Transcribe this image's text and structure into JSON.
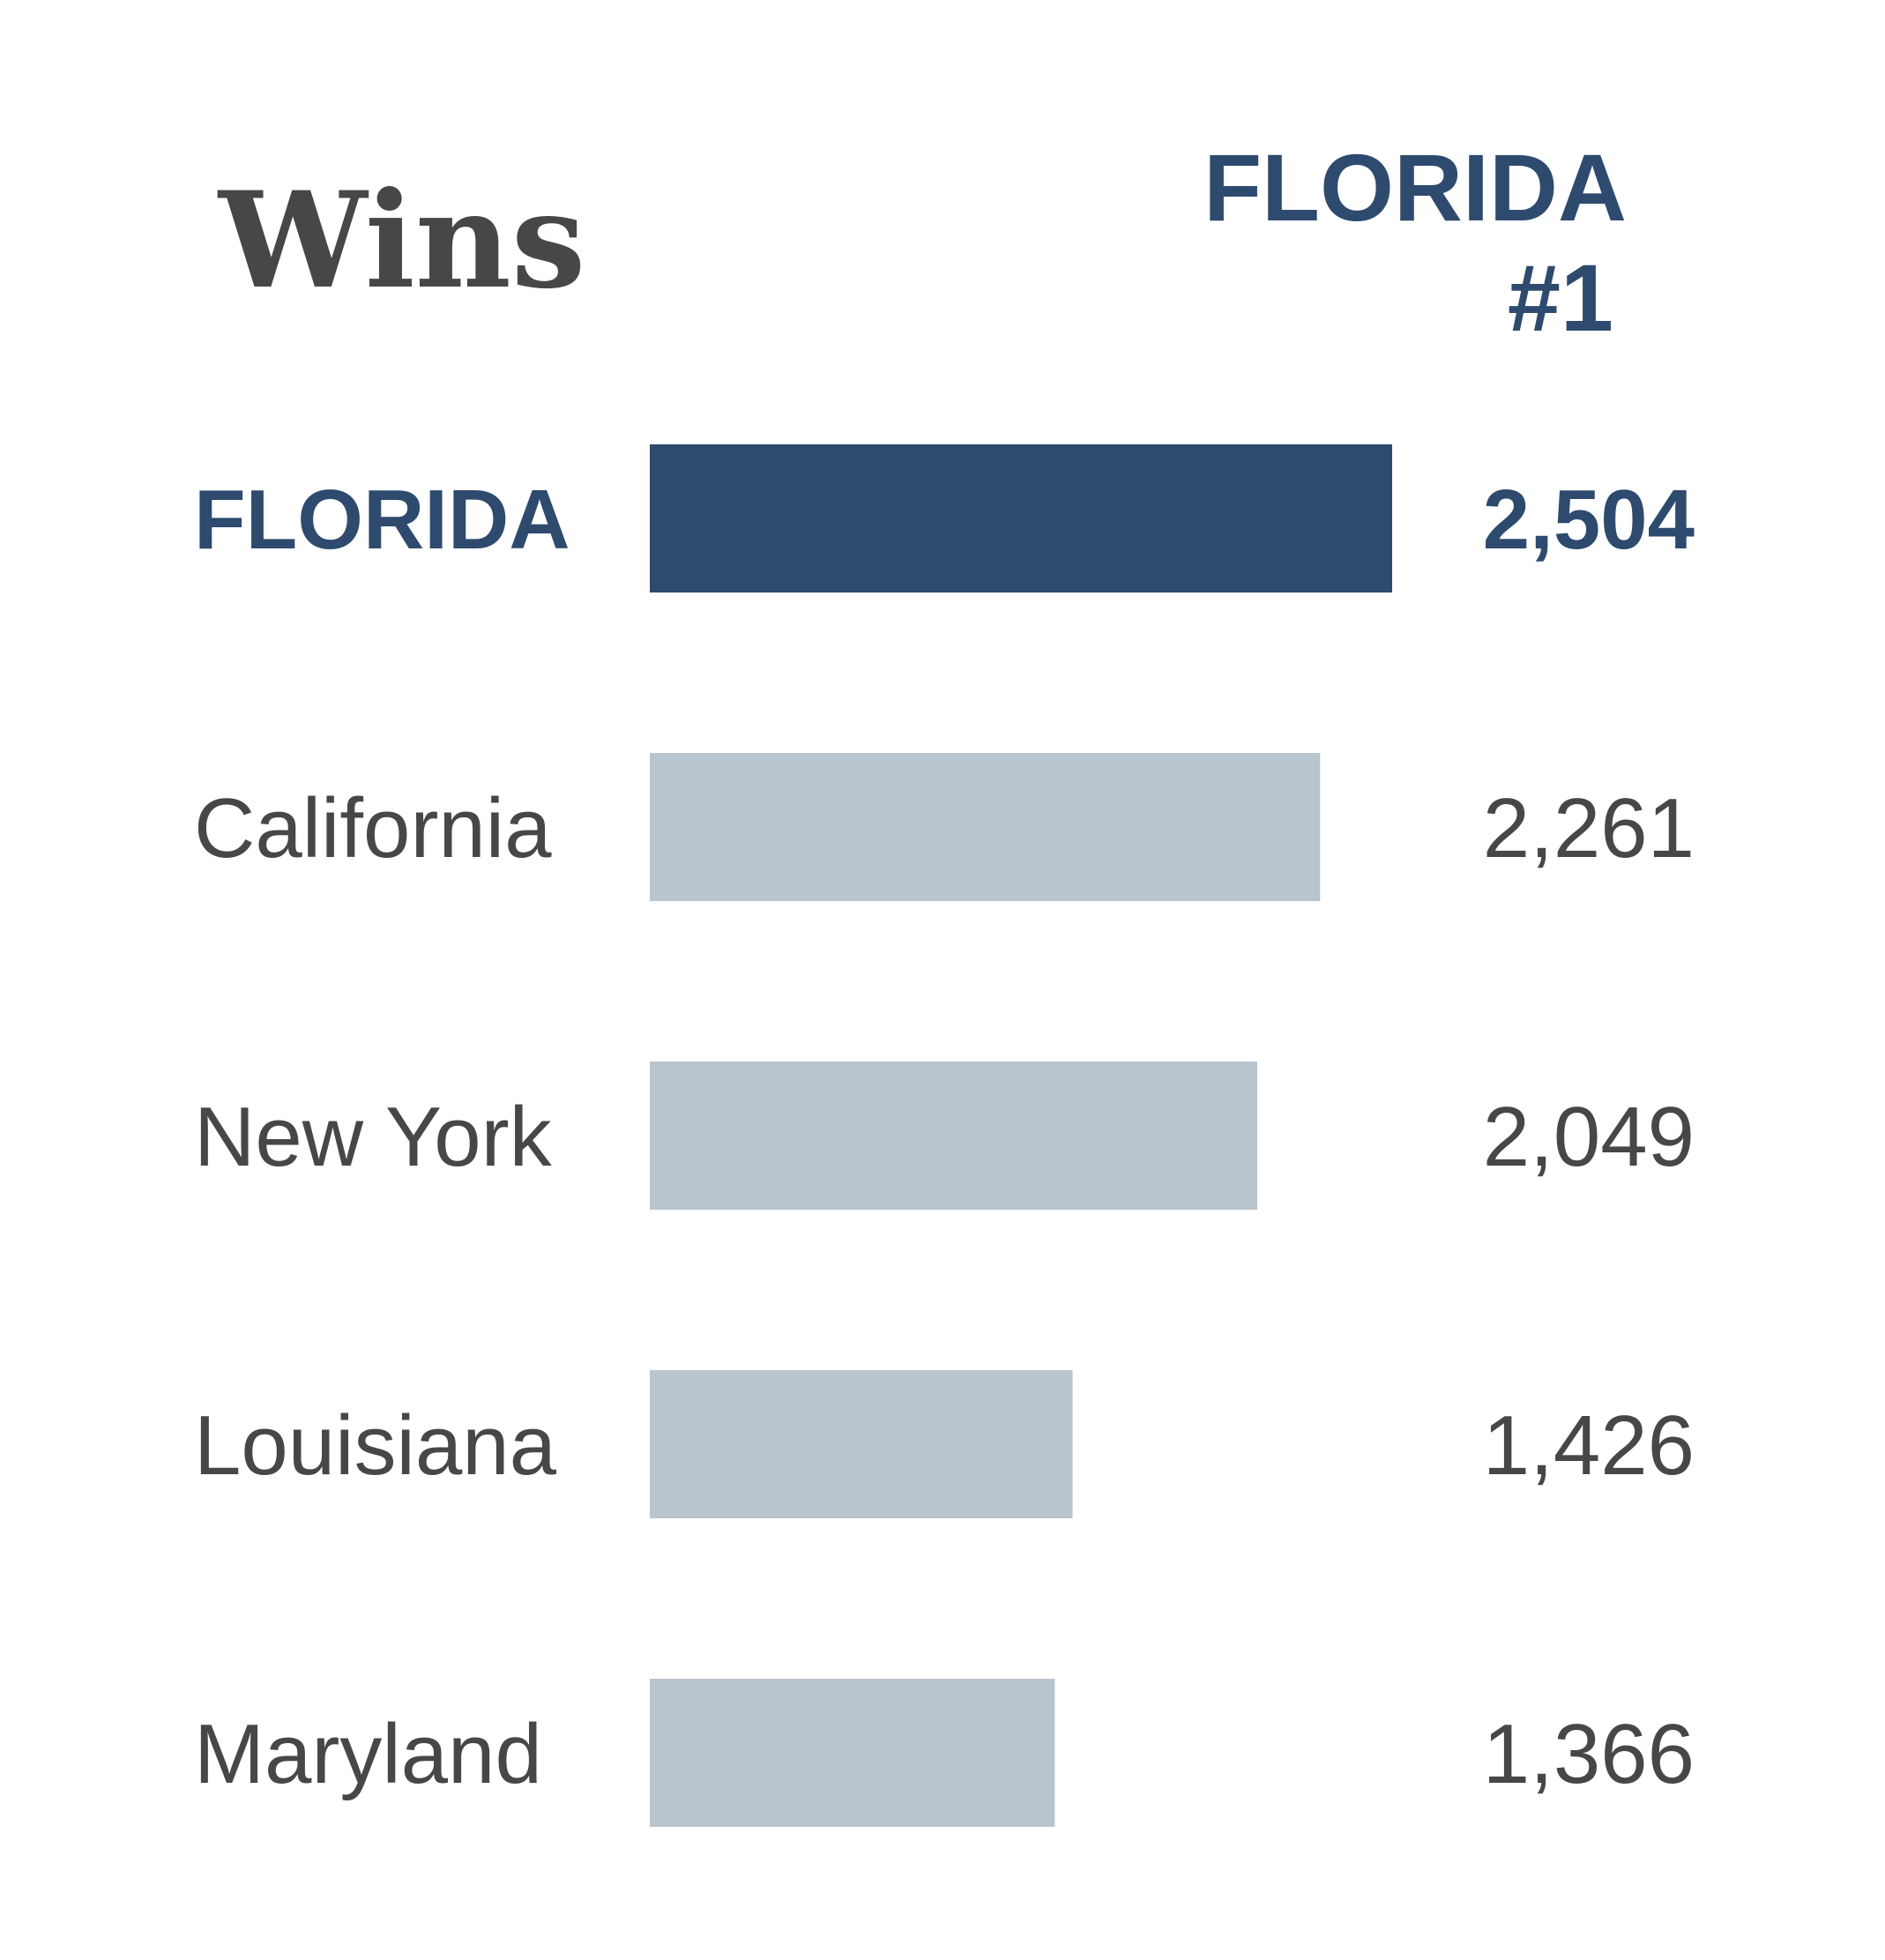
{
  "chart_data": {
    "type": "bar",
    "orientation": "horizontal",
    "title": "Wins",
    "highlight": {
      "line1": "FLORIDA",
      "line2": "#1"
    },
    "categories": [
      "FLORIDA",
      "California",
      "New York",
      "Louisiana",
      "Maryland"
    ],
    "values": [
      2504,
      2261,
      2049,
      1426,
      1366
    ],
    "value_labels": [
      "2,504",
      "2,261",
      "2,049",
      "1,426",
      "1,366"
    ],
    "highlighted_category": "FLORIDA",
    "xlim": [
      0,
      2504
    ],
    "grid": false,
    "legend": "none"
  },
  "colors": {
    "highlight": "#2e4a6e",
    "bar": "#b8c4ce",
    "text": "#474747"
  }
}
